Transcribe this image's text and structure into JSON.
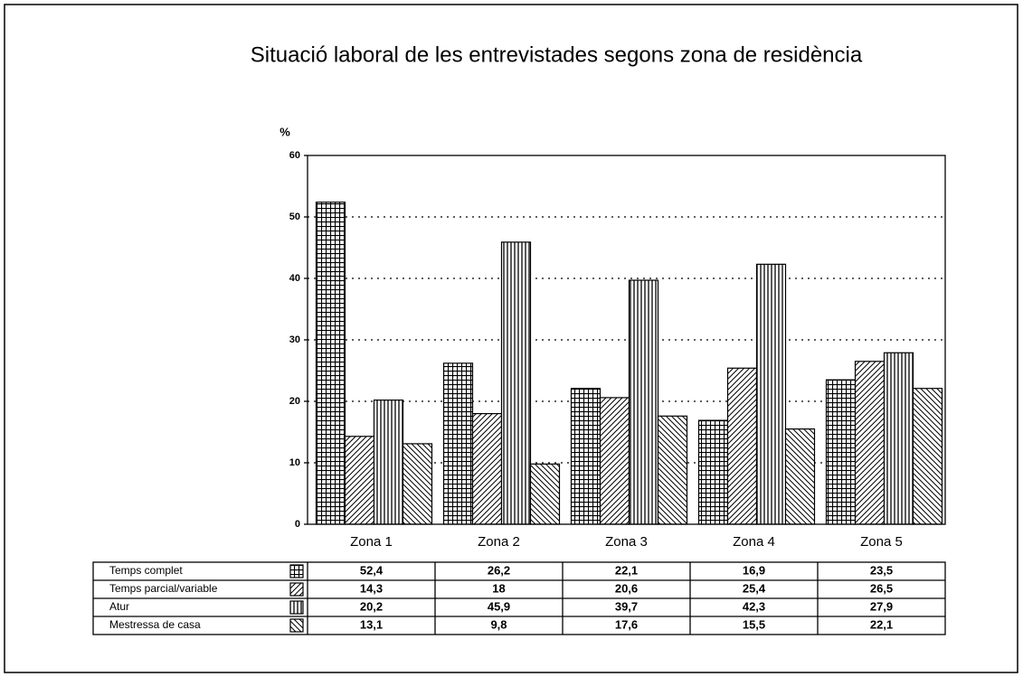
{
  "chart_data": {
    "type": "bar",
    "title": "Situació laboral de les entrevistades segons zona de residència",
    "y_label": "%",
    "categories": [
      "Zona 1",
      "Zona 2",
      "Zona 3",
      "Zona 4",
      "Zona 5"
    ],
    "series": [
      {
        "name": "Temps complet",
        "color": "#000000",
        "values": [
          52.4,
          26.2,
          22.1,
          16.9,
          23.5
        ],
        "value_labels": [
          "52,4",
          "26,2",
          "22,1",
          "16,9",
          "23,5"
        ]
      },
      {
        "name": "Temps parcial/variable",
        "color": "#000000",
        "values": [
          14.3,
          18,
          20.6,
          25.4,
          26.5
        ],
        "value_labels": [
          "14,3",
          "18",
          "20,6",
          "25,4",
          "26,5"
        ]
      },
      {
        "name": "Atur",
        "color": "#000000",
        "values": [
          20.2,
          45.9,
          39.7,
          42.3,
          27.9
        ],
        "value_labels": [
          "20,2",
          "45,9",
          "39,7",
          "42,3",
          "27,9"
        ]
      },
      {
        "name": "Mestressa de casa",
        "color": "#000000",
        "values": [
          13.1,
          9.8,
          17.6,
          15.5,
          22.1
        ],
        "value_labels": [
          "13,1",
          "9,8",
          "17,6",
          "15,5",
          "22,1"
        ]
      }
    ],
    "ylim": [
      0,
      60
    ],
    "yticks": [
      0,
      10,
      20,
      30,
      40,
      50,
      60
    ],
    "grid": true
  }
}
